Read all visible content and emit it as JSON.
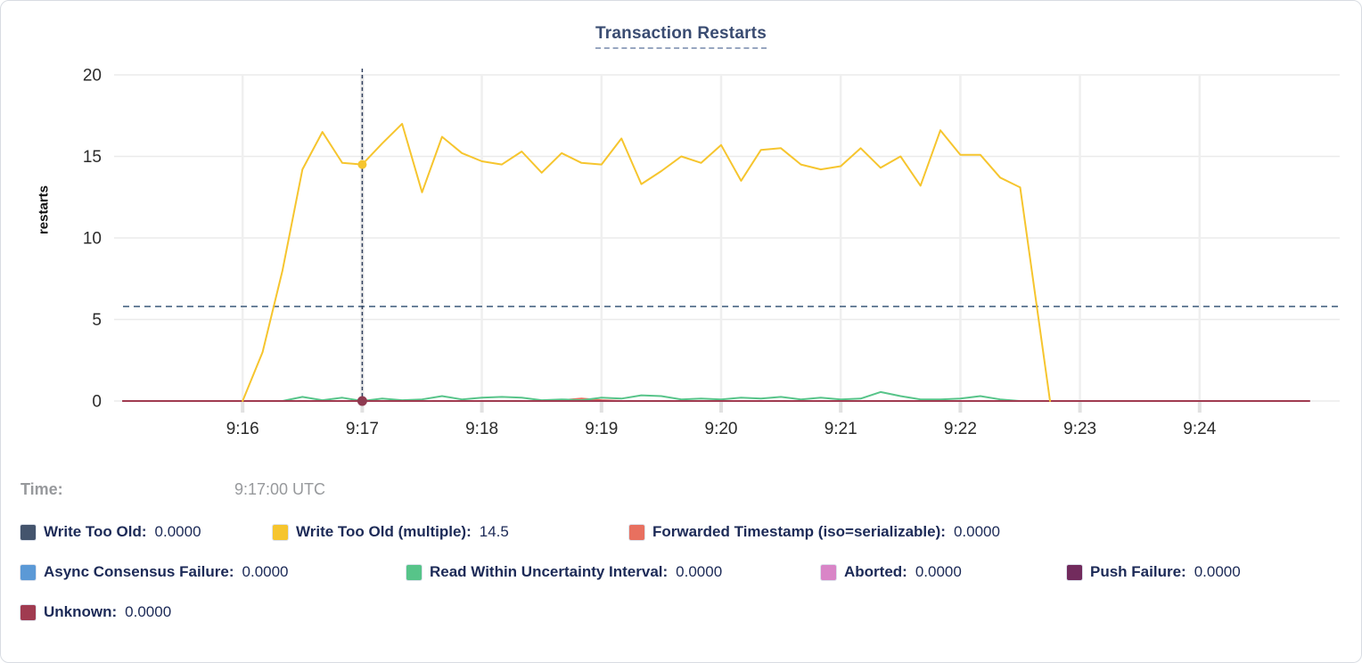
{
  "header": {
    "title": "Transaction Restarts"
  },
  "tooltip": {
    "time_label": "Time:",
    "time_value": "9:17:00 UTC"
  },
  "legend": {
    "rows": [
      [
        {
          "label": "Write Too Old:",
          "value": "0.0000",
          "color": "#44546D"
        },
        {
          "label": "Write Too Old (multiple):",
          "value": "14.5",
          "color": "#F6C52E"
        },
        {
          "label": "Forwarded Timestamp (iso=serializable):",
          "value": "0.0000",
          "color": "#E8705F"
        }
      ],
      [
        {
          "label": "Async Consensus Failure:",
          "value": "0.0000",
          "color": "#5B99D6"
        },
        {
          "label": "Read Within Uncertainty Interval:",
          "value": "0.0000",
          "color": "#57C489"
        },
        {
          "label": "Aborted:",
          "value": "0.0000",
          "color": "#D985C7"
        },
        {
          "label": "Push Failure:",
          "value": "0.0000",
          "color": "#722B5D"
        }
      ],
      [
        {
          "label": "Unknown:",
          "value": "0.0000",
          "color": "#A03B50"
        }
      ]
    ]
  },
  "chart_data": {
    "type": "line",
    "title": "Transaction Restarts",
    "xlabel": "",
    "ylabel": "restarts",
    "ylim": [
      0,
      20
    ],
    "yticks": [
      0,
      5,
      10,
      15,
      20
    ],
    "xticks": [
      "9:16",
      "9:17",
      "9:18",
      "9:19",
      "9:20",
      "9:21",
      "9:22",
      "9:23",
      "9:24"
    ],
    "x_range": [
      "9:15:00",
      "9:25:00"
    ],
    "grid": true,
    "legend_position": "bottom",
    "avg_line_value": 5.8,
    "hover": {
      "time": "9:17:00 UTC",
      "crosshair_time": "9:17:00",
      "dots": [
        {
          "t": "9:17:00",
          "v": 14.5,
          "color": "#F6C52E",
          "r": 5,
          "series": "Write Too Old (multiple)"
        },
        {
          "t": "9:17:00",
          "v": 0,
          "color": "#8E3A50",
          "r": 5.5,
          "series": "Unknown"
        }
      ]
    },
    "series": [
      {
        "name": "Write Too Old",
        "color": "#44546D",
        "points": [
          [
            "9:15:00",
            0
          ],
          [
            "9:24:55",
            0
          ]
        ]
      },
      {
        "name": "Async Consensus Failure",
        "color": "#5B99D6",
        "points": [
          [
            "9:15:00",
            0
          ],
          [
            "9:24:55",
            0
          ]
        ]
      },
      {
        "name": "Aborted",
        "color": "#D985C7",
        "points": [
          [
            "9:15:00",
            0
          ],
          [
            "9:24:55",
            0
          ]
        ]
      },
      {
        "name": "Push Failure",
        "color": "#722B5D",
        "points": [
          [
            "9:15:00",
            0
          ],
          [
            "9:24:55",
            0
          ]
        ]
      },
      {
        "name": "Forwarded Timestamp (iso=serializable)",
        "color": "#E8705F",
        "points": [
          [
            "9:15:00",
            0
          ],
          [
            "9:18:30",
            0
          ],
          [
            "9:18:40",
            0.05
          ],
          [
            "9:18:50",
            0.15
          ],
          [
            "9:19:00",
            0.05
          ],
          [
            "9:19:10",
            0
          ],
          [
            "9:24:55",
            0
          ]
        ]
      },
      {
        "name": "Read Within Uncertainty Interval",
        "color": "#57C489",
        "points": [
          [
            "9:16:20",
            0
          ],
          [
            "9:16:30",
            0.25
          ],
          [
            "9:16:40",
            0.05
          ],
          [
            "9:16:50",
            0.2
          ],
          [
            "9:17:00",
            0
          ],
          [
            "9:17:10",
            0.15
          ],
          [
            "9:17:20",
            0.05
          ],
          [
            "9:17:30",
            0.1
          ],
          [
            "9:17:40",
            0.3
          ],
          [
            "9:17:50",
            0.1
          ],
          [
            "9:18:00",
            0.2
          ],
          [
            "9:18:10",
            0.25
          ],
          [
            "9:18:20",
            0.2
          ],
          [
            "9:18:30",
            0.05
          ],
          [
            "9:18:40",
            0.1
          ],
          [
            "9:18:50",
            0.05
          ],
          [
            "9:19:00",
            0.2
          ],
          [
            "9:19:10",
            0.15
          ],
          [
            "9:19:20",
            0.35
          ],
          [
            "9:19:30",
            0.3
          ],
          [
            "9:19:40",
            0.1
          ],
          [
            "9:19:50",
            0.15
          ],
          [
            "9:20:00",
            0.1
          ],
          [
            "9:20:10",
            0.2
          ],
          [
            "9:20:20",
            0.15
          ],
          [
            "9:20:30",
            0.25
          ],
          [
            "9:20:40",
            0.1
          ],
          [
            "9:20:50",
            0.2
          ],
          [
            "9:21:00",
            0.1
          ],
          [
            "9:21:10",
            0.15
          ],
          [
            "9:21:20",
            0.55
          ],
          [
            "9:21:30",
            0.3
          ],
          [
            "9:21:40",
            0.1
          ],
          [
            "9:21:50",
            0.1
          ],
          [
            "9:22:00",
            0.15
          ],
          [
            "9:22:10",
            0.3
          ],
          [
            "9:22:20",
            0.1
          ],
          [
            "9:22:30",
            0
          ]
        ]
      },
      {
        "name": "Unknown",
        "color": "#A03B50",
        "points": [
          [
            "9:15:00",
            0
          ],
          [
            "9:24:55",
            0
          ]
        ]
      },
      {
        "name": "Write Too Old (multiple)",
        "color": "#F6C52E",
        "points": [
          [
            "9:16:00",
            0
          ],
          [
            "9:16:10",
            3
          ],
          [
            "9:16:20",
            8
          ],
          [
            "9:16:30",
            14.2
          ],
          [
            "9:16:40",
            16.5
          ],
          [
            "9:16:50",
            14.6
          ],
          [
            "9:17:00",
            14.5
          ],
          [
            "9:17:10",
            15.8
          ],
          [
            "9:17:20",
            17
          ],
          [
            "9:17:30",
            12.8
          ],
          [
            "9:17:40",
            16.2
          ],
          [
            "9:17:50",
            15.2
          ],
          [
            "9:18:00",
            14.7
          ],
          [
            "9:18:10",
            14.5
          ],
          [
            "9:18:20",
            15.3
          ],
          [
            "9:18:30",
            14
          ],
          [
            "9:18:40",
            15.2
          ],
          [
            "9:18:50",
            14.6
          ],
          [
            "9:19:00",
            14.5
          ],
          [
            "9:19:10",
            16.1
          ],
          [
            "9:19:20",
            13.3
          ],
          [
            "9:19:30",
            14.1
          ],
          [
            "9:19:40",
            15
          ],
          [
            "9:19:50",
            14.6
          ],
          [
            "9:20:00",
            15.7
          ],
          [
            "9:20:10",
            13.5
          ],
          [
            "9:20:20",
            15.4
          ],
          [
            "9:20:30",
            15.5
          ],
          [
            "9:20:40",
            14.5
          ],
          [
            "9:20:50",
            14.2
          ],
          [
            "9:21:00",
            14.4
          ],
          [
            "9:21:10",
            15.5
          ],
          [
            "9:21:20",
            14.3
          ],
          [
            "9:21:30",
            15
          ],
          [
            "9:21:40",
            13.2
          ],
          [
            "9:21:50",
            16.6
          ],
          [
            "9:22:00",
            15.1
          ],
          [
            "9:22:10",
            15.1
          ],
          [
            "9:22:20",
            13.7
          ],
          [
            "9:22:30",
            13.1
          ],
          [
            "9:22:45",
            0
          ]
        ]
      }
    ]
  }
}
